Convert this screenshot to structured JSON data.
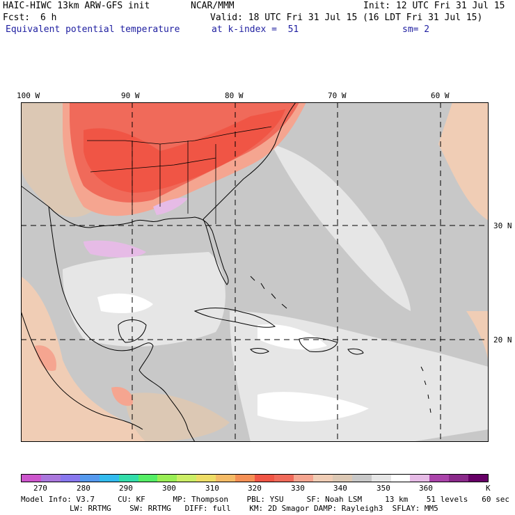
{
  "header": {
    "model": "HAIC-HIWC 13km ARW-GFS init",
    "org": "NCAR/MMM",
    "init": "Init: 12 UTC Fri 31 Jul 15",
    "fcst_label": "Fcst:",
    "fcst_value": "6 h",
    "valid": "Valid: 18 UTC Fri 31 Jul 15 (16 LDT Fri 31 Jul 15)",
    "field": "Equivalent potential temperature",
    "level": "at k-index =  51",
    "smooth": "sm= 2"
  },
  "map": {
    "lon_labels": [
      "100 W",
      "90 W",
      "80 W",
      "70 W",
      "60 W"
    ],
    "lat_labels": [
      "30 N",
      "20 N"
    ]
  },
  "colorbar": {
    "colors": [
      "#cc55cc",
      "#aa77dd",
      "#8877ee",
      "#5599ee",
      "#33bbee",
      "#33ddaa",
      "#55ee66",
      "#99ee55",
      "#ccee66",
      "#eedd66",
      "#f5bb66",
      "#f59055",
      "#f05545",
      "#f06a5a",
      "#f5a590",
      "#f0cdb5",
      "#dcc8b4",
      "#c8c8c8",
      "#e6e6e6",
      "#ffffff",
      "#e6bbe6",
      "#aa44aa",
      "#8a2a8a",
      "#660066"
    ],
    "tick_labels": [
      "270",
      "280",
      "290",
      "300",
      "310",
      "320",
      "330",
      "340",
      "350",
      "360",
      "K"
    ]
  },
  "footer": {
    "line1": "Model Info: V3.7     CU: KF      MP: Thompson    PBL: YSU     SF: Noah LSM     13 km    51 levels   60 sec",
    "line2": "LW: RRTMG    SW: RRTMG   DIFF: full    KM: 2D Smagor DAMP: Rayleigh3  SFLAY: MM5"
  }
}
